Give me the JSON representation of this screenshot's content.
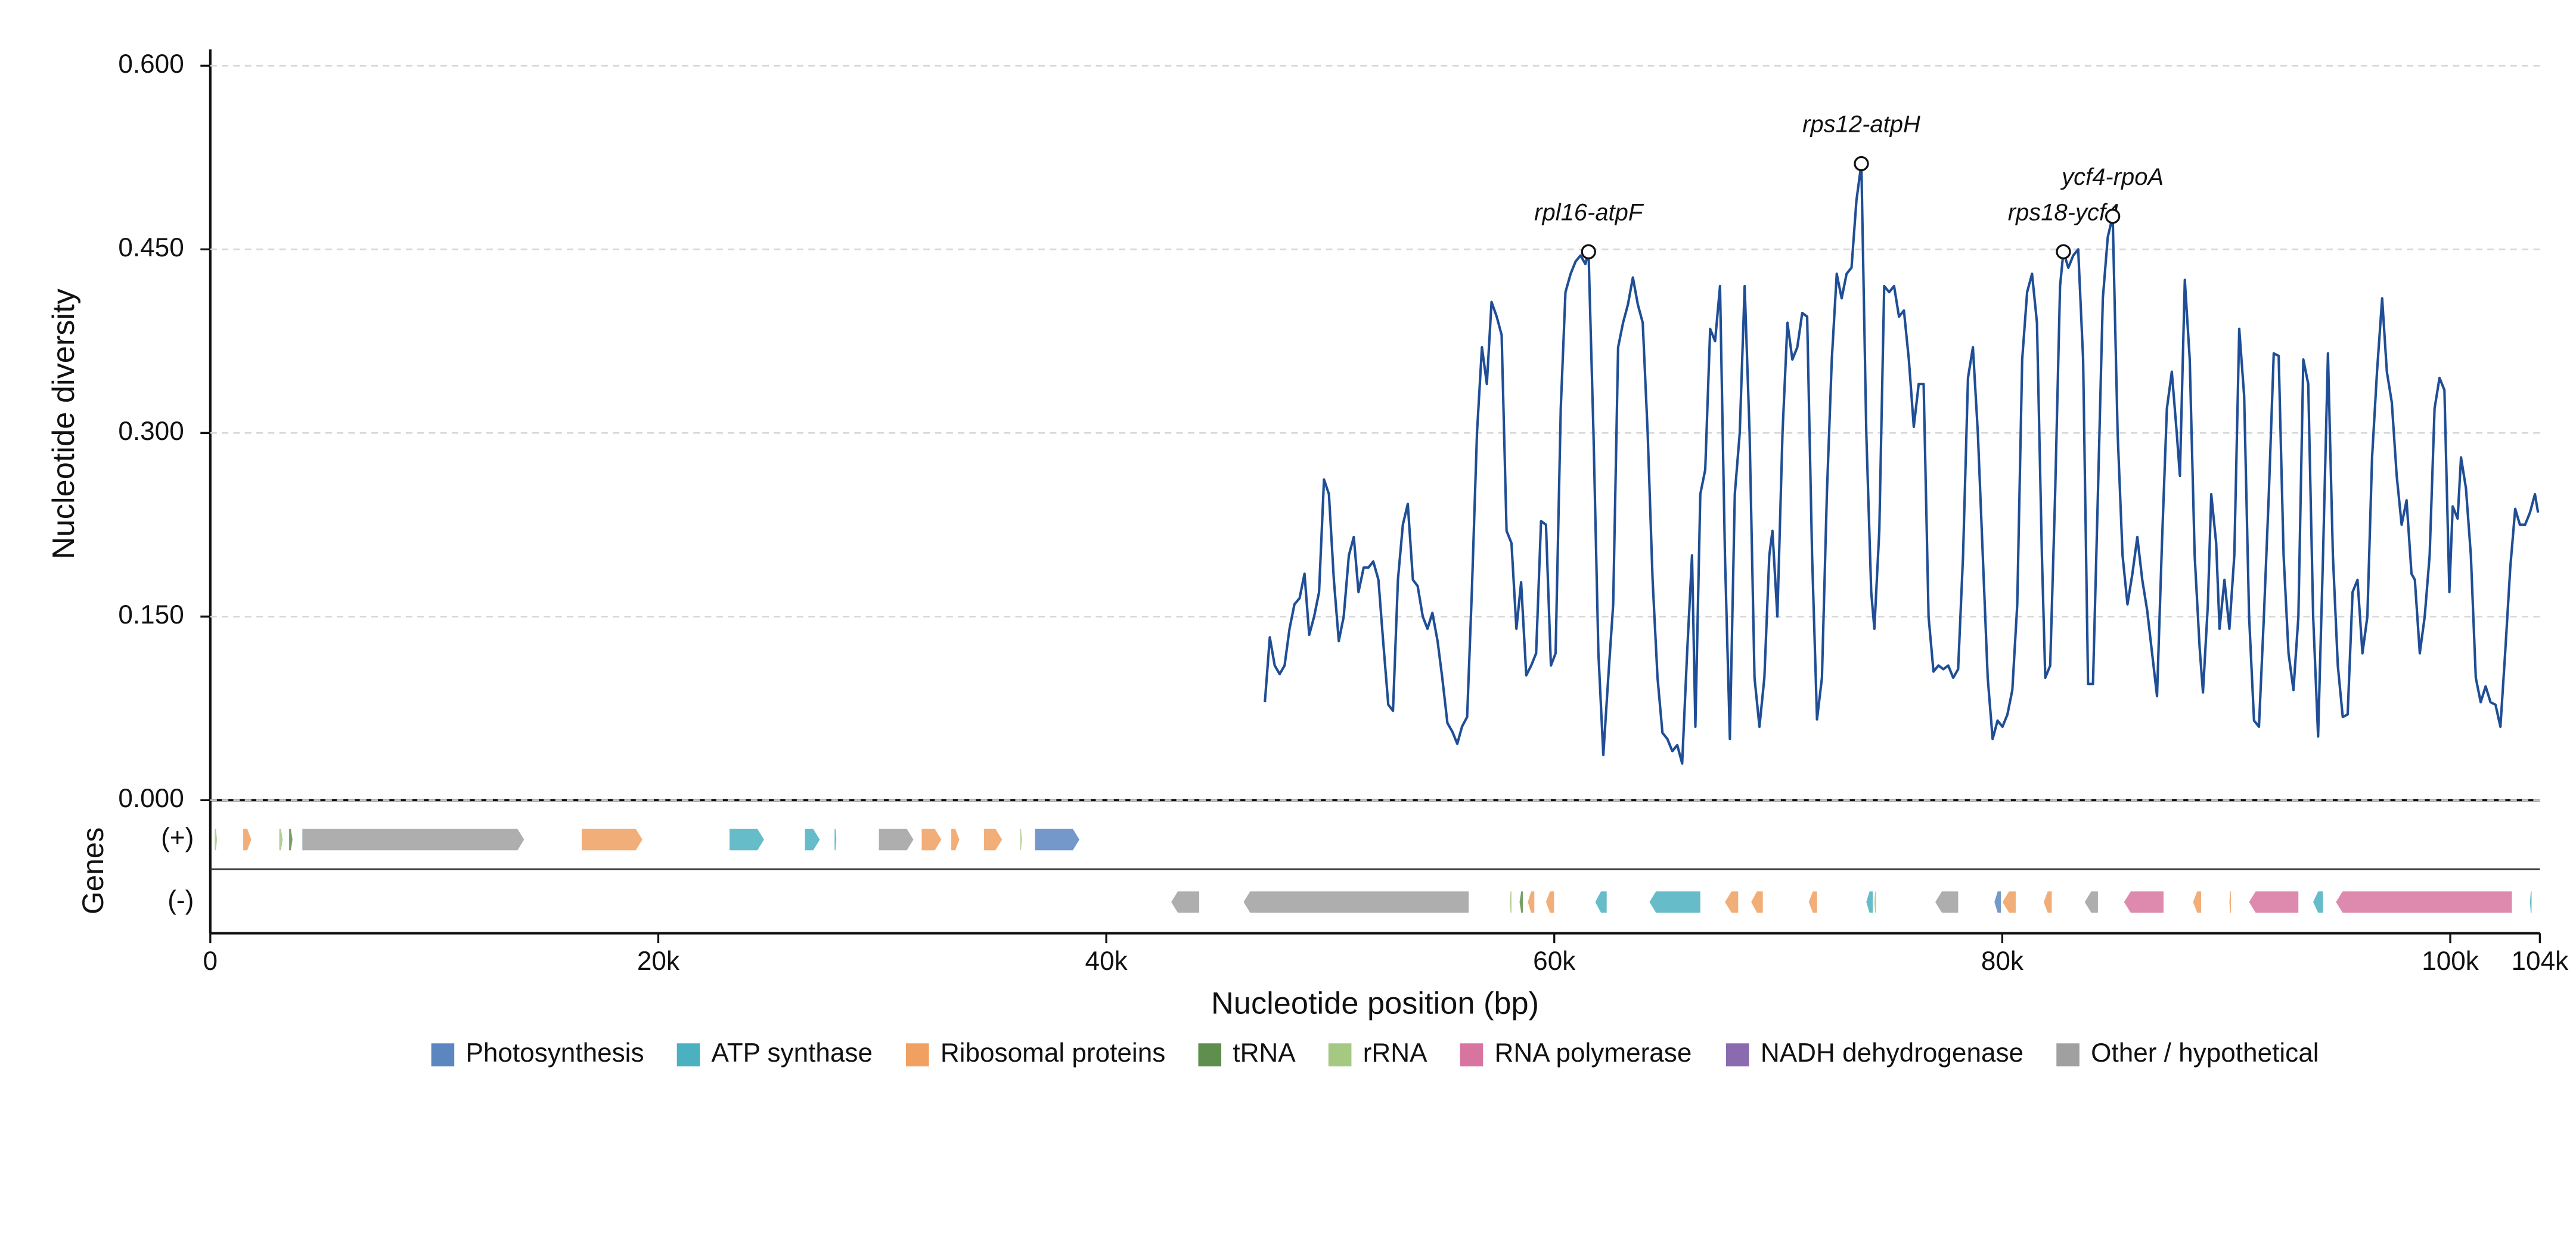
{
  "chart_data": {
    "type": "line",
    "y_label": "Nucleotide diversity",
    "x_label": "Nucleotide position (bp)",
    "xlim": [
      0,
      104000
    ],
    "xticks": [
      0,
      {
        "value": 20000,
        "label": "20k"
      },
      {
        "value": 40000,
        "label": "40k"
      },
      {
        "value": 60000,
        "label": "60k"
      },
      {
        "value": 80000,
        "label": "80k"
      },
      {
        "value": 100000,
        "label": "100k"
      },
      {
        "value": 104000,
        "label": "104k"
      }
    ],
    "ylim": [
      0,
      0.6
    ],
    "yticks": [
      {
        "value": 0,
        "label": "0.000"
      },
      {
        "value": 0.15,
        "label": "0.150"
      },
      {
        "value": 0.3,
        "label": "0.300"
      },
      {
        "value": 0.45,
        "label": "0.450"
      },
      {
        "value": 0.6,
        "label": "0.600"
      }
    ],
    "grid": true,
    "x": [
      47080,
      47300,
      47520,
      47740,
      47960,
      48180,
      48400,
      48630,
      48850,
      49060,
      49280,
      49500,
      49720,
      49940,
      50160,
      50380,
      50600,
      50830,
      51050,
      51260,
      51490,
      51700,
      51920,
      52150,
      52360,
      52590,
      52800,
      53020,
      53240,
      53460,
      53690,
      53900,
      54130,
      54340,
      54560,
      54790,
      55000,
      55230,
      55450,
      55670,
      55880,
      56110,
      56320,
      56550,
      56770,
      56990,
      57200,
      57430,
      57650,
      57870,
      58090,
      58310,
      58520,
      58750,
      58970,
      59190,
      59410,
      59630,
      59850,
      60060,
      60290,
      60500,
      60730,
      60950,
      61170,
      61390,
      61530,
      61750,
      61970,
      62190,
      62410,
      62630,
      62850,
      63070,
      63290,
      63510,
      63730,
      63950,
      64170,
      64390,
      64610,
      64830,
      65050,
      65270,
      65490,
      65710,
      65930,
      66150,
      66300,
      66520,
      66740,
      66960,
      67180,
      67400,
      67620,
      67840,
      68060,
      68280,
      68500,
      68720,
      68940,
      69160,
      69380,
      69600,
      69740,
      69960,
      70190,
      70410,
      70630,
      70850,
      71070,
      71290,
      71510,
      71730,
      71950,
      72170,
      72390,
      72610,
      72830,
      73050,
      73270,
      73490,
      73710,
      73930,
      74150,
      74290,
      74510,
      74730,
      74950,
      75170,
      75390,
      75610,
      75830,
      76050,
      76270,
      76490,
      76710,
      76930,
      77150,
      77370,
      77590,
      77810,
      78030,
      78250,
      78470,
      78690,
      78910,
      79130,
      79350,
      79570,
      79790,
      80010,
      80230,
      80450,
      80670,
      80890,
      81110,
      81330,
      81550,
      81770,
      81920,
      82140,
      82360,
      82580,
      82730,
      82950,
      83170,
      83390,
      83610,
      83830,
      84050,
      84270,
      84490,
      84710,
      84930,
      85150,
      85370,
      85590,
      85810,
      86030,
      86250,
      86470,
      86690,
      86910,
      87130,
      87350,
      87570,
      87790,
      87930,
      88150,
      88370,
      88590,
      88810,
      88960,
      89180,
      89330,
      89550,
      89700,
      89920,
      90140,
      90360,
      90580,
      90800,
      91020,
      91240,
      91460,
      91680,
      91900,
      92120,
      92340,
      92560,
      92780,
      93000,
      93220,
      93440,
      93660,
      93880,
      94100,
      94320,
      94540,
      94760,
      94980,
      95200,
      95420,
      95640,
      95860,
      96080,
      96300,
      96510,
      96730,
      96960,
      97170,
      97390,
      97610,
      97830,
      98050,
      98270,
      98420,
      98640,
      98860,
      99080,
      99300,
      99520,
      99740,
      99960,
      100110,
      100330,
      100480,
      100700,
      100920,
      101140,
      101360,
      101580,
      101800,
      102020,
      102240,
      102450,
      102680,
      102900,
      103110,
      103340,
      103560,
      103780,
      103920
    ],
    "series": [
      {
        "name": "Nucleotide diversity",
        "color": "#1f4e96",
        "values": [
          0.08,
          0.133,
          0.11,
          0.103,
          0.11,
          0.14,
          0.16,
          0.165,
          0.185,
          0.135,
          0.15,
          0.17,
          0.262,
          0.25,
          0.18,
          0.13,
          0.15,
          0.2,
          0.215,
          0.17,
          0.19,
          0.19,
          0.195,
          0.18,
          0.13,
          0.078,
          0.073,
          0.18,
          0.225,
          0.242,
          0.18,
          0.175,
          0.15,
          0.14,
          0.153,
          0.13,
          0.1,
          0.063,
          0.056,
          0.046,
          0.06,
          0.068,
          0.17,
          0.3,
          0.37,
          0.34,
          0.407,
          0.395,
          0.38,
          0.22,
          0.21,
          0.14,
          0.178,
          0.102,
          0.11,
          0.12,
          0.228,
          0.225,
          0.11,
          0.12,
          0.32,
          0.415,
          0.43,
          0.44,
          0.445,
          0.438,
          0.448,
          0.3,
          0.12,
          0.037,
          0.1,
          0.16,
          0.37,
          0.39,
          0.405,
          0.427,
          0.405,
          0.39,
          0.3,
          0.18,
          0.1,
          0.055,
          0.05,
          0.04,
          0.045,
          0.03,
          0.12,
          0.2,
          0.06,
          0.25,
          0.27,
          0.385,
          0.375,
          0.42,
          0.2,
          0.05,
          0.25,
          0.3,
          0.42,
          0.3,
          0.1,
          0.06,
          0.1,
          0.2,
          0.22,
          0.15,
          0.3,
          0.39,
          0.36,
          0.37,
          0.398,
          0.395,
          0.2,
          0.066,
          0.1,
          0.25,
          0.36,
          0.43,
          0.41,
          0.43,
          0.435,
          0.49,
          0.52,
          0.3,
          0.17,
          0.14,
          0.22,
          0.42,
          0.415,
          0.42,
          0.395,
          0.4,
          0.36,
          0.305,
          0.34,
          0.34,
          0.15,
          0.105,
          0.11,
          0.107,
          0.11,
          0.1,
          0.107,
          0.2,
          0.345,
          0.37,
          0.3,
          0.2,
          0.1,
          0.05,
          0.065,
          0.06,
          0.07,
          0.09,
          0.16,
          0.36,
          0.415,
          0.43,
          0.39,
          0.2,
          0.1,
          0.11,
          0.25,
          0.42,
          0.448,
          0.435,
          0.445,
          0.45,
          0.36,
          0.095,
          0.095,
          0.25,
          0.41,
          0.46,
          0.477,
          0.3,
          0.2,
          0.16,
          0.185,
          0.215,
          0.18,
          0.155,
          0.12,
          0.085,
          0.21,
          0.32,
          0.35,
          0.3,
          0.265,
          0.425,
          0.36,
          0.2,
          0.125,
          0.088,
          0.16,
          0.25,
          0.21,
          0.14,
          0.18,
          0.14,
          0.2,
          0.385,
          0.33,
          0.15,
          0.065,
          0.06,
          0.15,
          0.25,
          0.365,
          0.363,
          0.2,
          0.12,
          0.09,
          0.15,
          0.36,
          0.34,
          0.15,
          0.052,
          0.2,
          0.365,
          0.2,
          0.11,
          0.068,
          0.07,
          0.17,
          0.18,
          0.12,
          0.15,
          0.28,
          0.35,
          0.41,
          0.35,
          0.325,
          0.265,
          0.225,
          0.245,
          0.185,
          0.18,
          0.12,
          0.15,
          0.2,
          0.32,
          0.345,
          0.335,
          0.17,
          0.24,
          0.23,
          0.28,
          0.255,
          0.2,
          0.1,
          0.08,
          0.093,
          0.08,
          0.078,
          0.06,
          0.12,
          0.19,
          0.238,
          0.225,
          0.225,
          0.235,
          0.25,
          0.235
        ]
      }
    ],
    "annotations": [
      {
        "label": "rpl16-atpF",
        "x": 61530,
        "y": 0.448
      },
      {
        "label": "rps12-atpH",
        "x": 73710,
        "y": 0.52
      },
      {
        "label": "rps18-ycf4",
        "x": 82730,
        "y": 0.448
      },
      {
        "label": "ycf4-rpoA",
        "x": 84930,
        "y": 0.477
      }
    ],
    "gene_track": {
      "label": "Genes",
      "strands": [
        {
          "label": "(+)",
          "direction": 1,
          "genes": [
            {
              "start": 200,
              "end": 300,
              "category": "rRNA"
            },
            {
              "start": 1470,
              "end": 1830,
              "category": "Ribosomal proteins"
            },
            {
              "start": 3080,
              "end": 3230,
              "category": "rRNA"
            },
            {
              "start": 3520,
              "end": 3670,
              "category": "tRNA"
            },
            {
              "start": 4110,
              "end": 14010,
              "category": "Other / hypothetical"
            },
            {
              "start": 16580,
              "end": 19290,
              "category": "Ribosomal proteins"
            },
            {
              "start": 23180,
              "end": 24720,
              "category": "ATP synthase"
            },
            {
              "start": 26550,
              "end": 27210,
              "category": "ATP synthase"
            },
            {
              "start": 27870,
              "end": 27950,
              "category": "ATP synthase"
            },
            {
              "start": 29850,
              "end": 31390,
              "category": "Other / hypothetical"
            },
            {
              "start": 31760,
              "end": 32640,
              "category": "Ribosomal proteins"
            },
            {
              "start": 33080,
              "end": 33440,
              "category": "Ribosomal proteins"
            },
            {
              "start": 34540,
              "end": 35350,
              "category": "Ribosomal proteins"
            },
            {
              "start": 36160,
              "end": 36230,
              "category": "rRNA"
            },
            {
              "start": 36820,
              "end": 38800,
              "category": "Photosynthesis"
            }
          ]
        },
        {
          "label": "(-)",
          "direction": -1,
          "genes": [
            {
              "start": 42900,
              "end": 44150,
              "category": "Other / hypothetical"
            },
            {
              "start": 46130,
              "end": 56180,
              "category": "Other / hypothetical"
            },
            {
              "start": 58010,
              "end": 58090,
              "category": "rRNA"
            },
            {
              "start": 58450,
              "end": 58600,
              "category": "tRNA"
            },
            {
              "start": 58820,
              "end": 59110,
              "category": "Ribosomal proteins"
            },
            {
              "start": 59630,
              "end": 59990,
              "category": "Ribosomal proteins"
            },
            {
              "start": 61830,
              "end": 62340,
              "category": "ATP synthase"
            },
            {
              "start": 64250,
              "end": 66520,
              "category": "ATP synthase"
            },
            {
              "start": 67620,
              "end": 68210,
              "category": "Ribosomal proteins"
            },
            {
              "start": 68790,
              "end": 69310,
              "category": "Ribosomal proteins"
            },
            {
              "start": 71360,
              "end": 71730,
              "category": "Ribosomal proteins"
            },
            {
              "start": 73930,
              "end": 74220,
              "category": "ATP synthase"
            },
            {
              "start": 74290,
              "end": 74370,
              "category": "rRNA"
            },
            {
              "start": 77010,
              "end": 78030,
              "category": "Other / hypothetical"
            },
            {
              "start": 79650,
              "end": 79940,
              "category": "Photosynthesis"
            },
            {
              "start": 80010,
              "end": 80600,
              "category": "Ribosomal proteins"
            },
            {
              "start": 81850,
              "end": 82210,
              "category": "Ribosomal proteins"
            },
            {
              "start": 83680,
              "end": 84270,
              "category": "Other / hypothetical"
            },
            {
              "start": 85440,
              "end": 87200,
              "category": "RNA polymerase"
            },
            {
              "start": 88520,
              "end": 88880,
              "category": "Ribosomal proteins"
            },
            {
              "start": 90140,
              "end": 90210,
              "category": "Ribosomal proteins"
            },
            {
              "start": 91020,
              "end": 93220,
              "category": "RNA polymerase"
            },
            {
              "start": 93880,
              "end": 94320,
              "category": "ATP synthase"
            },
            {
              "start": 94900,
              "end": 102750,
              "category": "RNA polymerase"
            },
            {
              "start": 103560,
              "end": 103630,
              "category": "ATP synthase"
            }
          ]
        }
      ]
    },
    "legend": [
      {
        "name": "Photosynthesis",
        "color": "#5b86c0"
      },
      {
        "name": "ATP synthase",
        "color": "#4bb0c0"
      },
      {
        "name": "Ribosomal proteins",
        "color": "#f0a060"
      },
      {
        "name": "tRNA",
        "color": "#5f8f4e"
      },
      {
        "name": "rRNA",
        "color": "#a5c882"
      },
      {
        "name": "RNA polymerase",
        "color": "#d874a0"
      },
      {
        "name": "NADH dehydrogenase",
        "color": "#8a6bb0"
      },
      {
        "name": "Other / hypothetical",
        "color": "#a0a0a0"
      }
    ]
  }
}
